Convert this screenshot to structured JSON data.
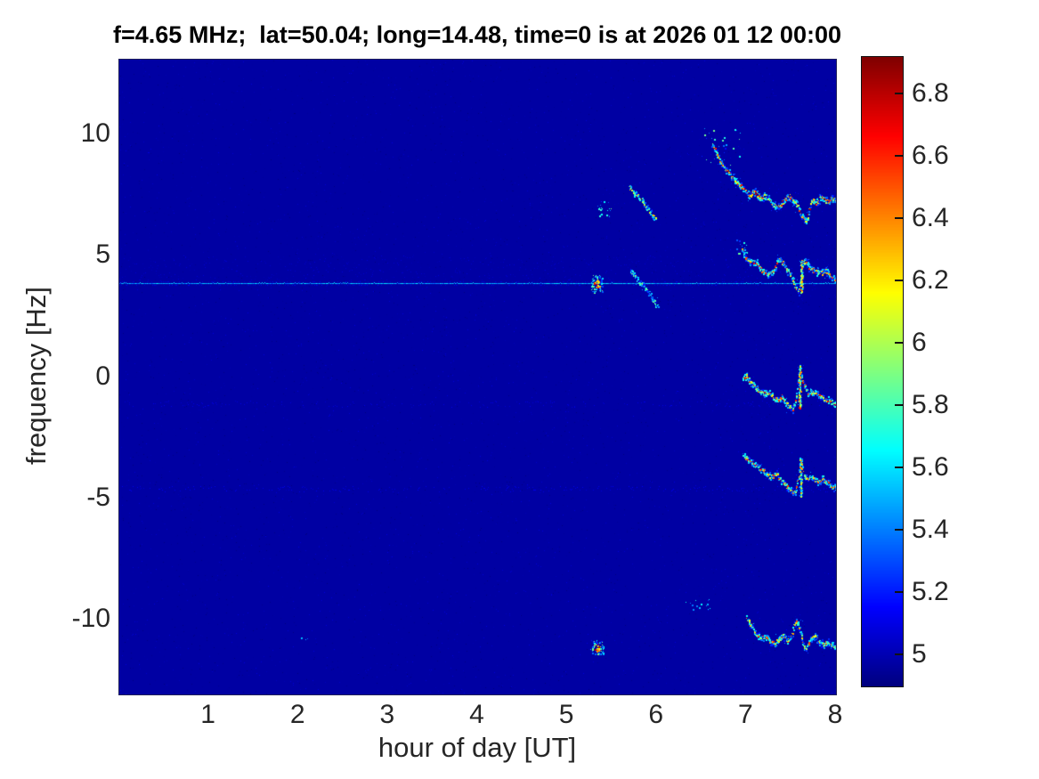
{
  "chart_data": {
    "type": "heatmap",
    "subtype": "doppler-spectrogram",
    "title": "f=4.65 MHz;  lat=50.04; long=14.48, time=0 is at 2026 01 12 00:00",
    "xlabel": "hour of day [UT]",
    "ylabel": "frequency [Hz]",
    "xlim": [
      0,
      8.0
    ],
    "ylim": [
      -13.1,
      13.1
    ],
    "x_ticks": [
      "1",
      "2",
      "3",
      "4",
      "5",
      "6",
      "7",
      "8"
    ],
    "x_tick_values": [
      1,
      2,
      3,
      4,
      5,
      6,
      7,
      8
    ],
    "y_ticks": [
      "10",
      "5",
      "0",
      "-5",
      "-10"
    ],
    "y_tick_values": [
      10,
      5,
      0,
      -5,
      -10
    ],
    "grid": false,
    "colormap": "jet",
    "color_range": [
      4.9,
      6.92
    ],
    "background_value": 4.97,
    "colorbar_ticks": [
      "5",
      "5.2",
      "5.4",
      "5.6",
      "5.8",
      "6",
      "6.2",
      "6.4",
      "6.6",
      "6.8"
    ],
    "colorbar_tick_values": [
      5,
      5.2,
      5.4,
      5.6,
      5.8,
      6,
      6.2,
      6.4,
      6.6,
      6.8
    ],
    "text_color": "#262626",
    "title_color": "#000000",
    "features": [
      {
        "name": "carrier-line",
        "kind": "hline",
        "freq": 3.88,
        "hours": [
          0,
          8
        ],
        "value": 5.3,
        "value_jitter": 0.35
      },
      {
        "name": "diffuse-band-above-line",
        "kind": "band",
        "freq_center": 4.5,
        "freq_halfwidth": 0.5,
        "hours": [
          0,
          8
        ],
        "value": 5.03,
        "density": 0.55
      },
      {
        "name": "noise-row-minus1hz",
        "kind": "band",
        "freq_center": -1.1,
        "freq_halfwidth": 0.12,
        "hours": [
          0,
          8
        ],
        "value": 5.07,
        "density": 0.22
      },
      {
        "name": "noise-row-minus4p6hz",
        "kind": "band",
        "freq_center": -4.6,
        "freq_halfwidth": 0.12,
        "hours": [
          0,
          8
        ],
        "value": 5.09,
        "density": 0.3
      },
      {
        "name": "specks-7hz-5.4h",
        "kind": "specks",
        "hour_range": [
          5.33,
          5.5
        ],
        "freq_range": [
          6.6,
          7.3
        ],
        "count": 22,
        "value_range": [
          5.2,
          6.0
        ]
      },
      {
        "name": "segment-7hz-5.8h",
        "kind": "trace",
        "core": 6.35,
        "width": 1.4,
        "points": [
          [
            5.69,
            7.85
          ],
          [
            5.76,
            7.55
          ],
          [
            5.83,
            7.3
          ],
          [
            5.9,
            6.95
          ],
          [
            5.98,
            6.55
          ]
        ]
      },
      {
        "name": "blob-4hz-5.3h",
        "kind": "blob",
        "center": [
          5.33,
          3.85
        ],
        "spread": [
          0.06,
          0.35
        ],
        "count": 90,
        "core": 6.75
      },
      {
        "name": "segment-3hz-5.9h",
        "kind": "trace",
        "core": 6.0,
        "width": 1.3,
        "points": [
          [
            5.7,
            4.35
          ],
          [
            5.78,
            4.05
          ],
          [
            5.86,
            3.75
          ],
          [
            5.94,
            3.3
          ],
          [
            6.01,
            2.9
          ]
        ]
      },
      {
        "name": "specks-9hz-6.7h",
        "kind": "specks",
        "hour_range": [
          6.5,
          6.95
        ],
        "freq_range": [
          8.6,
          10.3
        ],
        "count": 26,
        "value_range": [
          5.15,
          5.9
        ]
      },
      {
        "name": "trace-7.3hz",
        "kind": "trace",
        "core": 6.85,
        "width": 2.2,
        "points": [
          [
            6.62,
            9.6
          ],
          [
            6.7,
            9.0
          ],
          [
            6.78,
            8.5
          ],
          [
            6.88,
            8.1
          ],
          [
            6.95,
            7.85
          ],
          [
            7.03,
            7.5
          ],
          [
            7.08,
            7.7
          ],
          [
            7.15,
            7.4
          ],
          [
            7.22,
            7.5
          ],
          [
            7.28,
            7.15
          ],
          [
            7.34,
            7.0
          ],
          [
            7.42,
            7.3
          ],
          [
            7.47,
            7.55
          ],
          [
            7.52,
            7.3
          ],
          [
            7.57,
            7.1
          ],
          [
            7.62,
            6.6
          ],
          [
            7.67,
            6.4
          ],
          [
            7.72,
            7.35
          ],
          [
            7.78,
            7.2
          ],
          [
            7.83,
            7.45
          ],
          [
            7.89,
            7.25
          ],
          [
            7.95,
            7.4
          ],
          [
            8.0,
            7.35
          ]
        ]
      },
      {
        "name": "specks-5.4hz-6.9h",
        "kind": "specks",
        "hour_range": [
          6.88,
          7.0
        ],
        "freq_range": [
          5.0,
          5.7
        ],
        "count": 14,
        "value_range": [
          5.2,
          5.9
        ]
      },
      {
        "name": "trace-4.4hz",
        "kind": "trace",
        "core": 6.7,
        "width": 2.0,
        "points": [
          [
            6.95,
            5.25
          ],
          [
            7.0,
            4.9
          ],
          [
            7.05,
            4.75
          ],
          [
            7.1,
            4.8
          ],
          [
            7.15,
            4.5
          ],
          [
            7.2,
            4.3
          ],
          [
            7.25,
            4.25
          ],
          [
            7.3,
            4.4
          ],
          [
            7.36,
            4.85
          ],
          [
            7.41,
            4.7
          ],
          [
            7.46,
            4.4
          ],
          [
            7.51,
            4.1
          ],
          [
            7.55,
            3.7
          ],
          [
            7.58,
            3.5
          ],
          [
            7.62,
            4.6
          ],
          [
            7.65,
            4.9
          ],
          [
            7.69,
            4.6
          ],
          [
            7.74,
            4.4
          ],
          [
            7.79,
            4.4
          ],
          [
            7.84,
            4.3
          ],
          [
            7.88,
            4.4
          ],
          [
            7.93,
            4.2
          ],
          [
            7.98,
            4.05
          ],
          [
            8.0,
            4.0
          ]
        ]
      },
      {
        "name": "spike-4hz",
        "kind": "spike",
        "hour": 7.61,
        "freq_range": [
          3.5,
          4.85
        ],
        "value": 6.6
      },
      {
        "name": "trace-0hz",
        "kind": "trace",
        "core": 6.8,
        "width": 2.0,
        "points": [
          [
            6.96,
            0.0
          ],
          [
            7.0,
            0.05
          ],
          [
            7.05,
            -0.2
          ],
          [
            7.1,
            -0.4
          ],
          [
            7.15,
            -0.6
          ],
          [
            7.2,
            -0.7
          ],
          [
            7.25,
            -0.6
          ],
          [
            7.3,
            -0.85
          ],
          [
            7.35,
            -0.95
          ],
          [
            7.4,
            -0.8
          ],
          [
            7.43,
            -1.0
          ],
          [
            7.48,
            -1.2
          ],
          [
            7.52,
            -1.3
          ],
          [
            7.56,
            -0.6
          ],
          [
            7.59,
            0.3
          ],
          [
            7.64,
            -0.3
          ],
          [
            7.69,
            -0.65
          ],
          [
            7.74,
            -0.55
          ],
          [
            7.79,
            -0.7
          ],
          [
            7.85,
            -0.85
          ],
          [
            7.92,
            -0.95
          ],
          [
            7.98,
            -1.1
          ],
          [
            8.0,
            -1.2
          ]
        ]
      },
      {
        "name": "spike-0hz",
        "kind": "spike",
        "hour": 7.59,
        "freq_range": [
          -1.3,
          0.5
        ],
        "value": 6.7
      },
      {
        "name": "trace-minus4hz",
        "kind": "trace",
        "core": 6.7,
        "width": 2.0,
        "points": [
          [
            6.96,
            -3.2
          ],
          [
            7.05,
            -3.5
          ],
          [
            7.12,
            -3.7
          ],
          [
            7.2,
            -3.9
          ],
          [
            7.27,
            -4.1
          ],
          [
            7.33,
            -4.0
          ],
          [
            7.4,
            -4.3
          ],
          [
            7.47,
            -4.6
          ],
          [
            7.53,
            -4.8
          ],
          [
            7.57,
            -4.3
          ],
          [
            7.6,
            -3.4
          ],
          [
            7.64,
            -4.0
          ],
          [
            7.69,
            -4.2
          ],
          [
            7.74,
            -4.1
          ],
          [
            7.79,
            -4.3
          ],
          [
            7.85,
            -4.2
          ],
          [
            7.92,
            -4.4
          ],
          [
            7.98,
            -4.55
          ],
          [
            8.0,
            -4.6
          ]
        ]
      },
      {
        "name": "spike-minus4hz",
        "kind": "spike",
        "hour": 7.6,
        "freq_range": [
          -4.9,
          -3.35
        ],
        "value": 6.5
      },
      {
        "name": "blob-minus11hz-5.3h",
        "kind": "blob",
        "center": [
          5.33,
          -11.15
        ],
        "spread": [
          0.07,
          0.28
        ],
        "count": 80,
        "core": 6.8
      },
      {
        "name": "speck-minus10.8hz-2h",
        "kind": "specks",
        "hour_range": [
          2.02,
          2.1
        ],
        "freq_range": [
          -10.95,
          -10.75
        ],
        "count": 4,
        "value_range": [
          5.3,
          5.7
        ]
      },
      {
        "name": "specks-minus9.3hz-6.4h",
        "kind": "specks",
        "hour_range": [
          6.28,
          6.6
        ],
        "freq_range": [
          -9.6,
          -9.1
        ],
        "count": 16,
        "value_range": [
          5.2,
          5.8
        ]
      },
      {
        "name": "trace-minus11hz",
        "kind": "trace",
        "core": 6.6,
        "width": 1.8,
        "points": [
          [
            7.0,
            -9.95
          ],
          [
            7.06,
            -10.3
          ],
          [
            7.11,
            -10.6
          ],
          [
            7.16,
            -10.8
          ],
          [
            7.21,
            -10.65
          ],
          [
            7.26,
            -10.9
          ],
          [
            7.31,
            -11.0
          ],
          [
            7.36,
            -10.8
          ],
          [
            7.41,
            -10.65
          ],
          [
            7.45,
            -10.9
          ],
          [
            7.5,
            -10.65
          ],
          [
            7.53,
            -10.2
          ],
          [
            7.56,
            -10.05
          ],
          [
            7.6,
            -10.5
          ],
          [
            7.63,
            -11.0
          ],
          [
            7.66,
            -11.2
          ],
          [
            7.71,
            -10.85
          ],
          [
            7.76,
            -10.65
          ],
          [
            7.81,
            -10.9
          ],
          [
            7.86,
            -11.05
          ],
          [
            7.91,
            -10.9
          ],
          [
            7.96,
            -11.1
          ],
          [
            8.0,
            -11.2
          ]
        ]
      }
    ]
  }
}
